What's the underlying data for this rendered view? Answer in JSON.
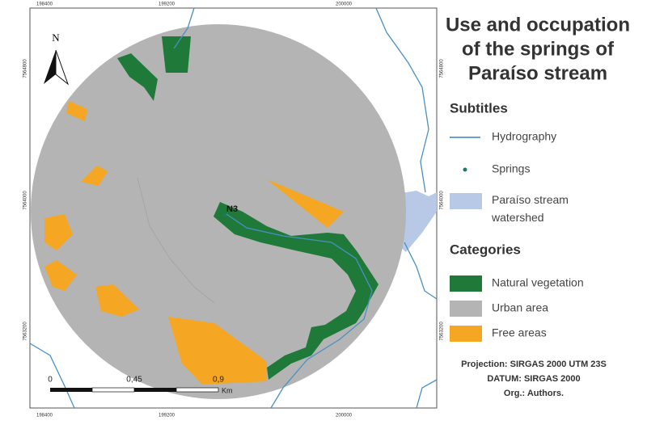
{
  "map": {
    "title_lines": [
      "Use and occupation",
      "of the springs of",
      "Paraíso stream"
    ],
    "north": "N",
    "spring_label": "N3",
    "grid": {
      "top": [
        "198400",
        "199200",
        "200000"
      ],
      "bottom": [
        "198400",
        "199200",
        "200000"
      ],
      "left": [
        "7564800",
        "7564000",
        "7563200"
      ],
      "right": [
        "7564800",
        "7564000",
        "7563200"
      ]
    },
    "scale": {
      "ticks": [
        "0",
        "0,45",
        "0,9"
      ],
      "unit": "Km"
    }
  },
  "legend": {
    "subtitles_heading": "Subtitles",
    "subtitles": [
      "Hydrography",
      "Springs",
      "Paraíso stream watershed"
    ],
    "categories_heading": "Categories",
    "categories": [
      "Natural vegetation",
      "Urban area",
      "Free areas"
    ]
  },
  "credits": [
    "Projection: SIRGAS 2000 UTM 23S",
    "DATUM: SIRGAS 2000",
    "Org.: Authors."
  ]
}
